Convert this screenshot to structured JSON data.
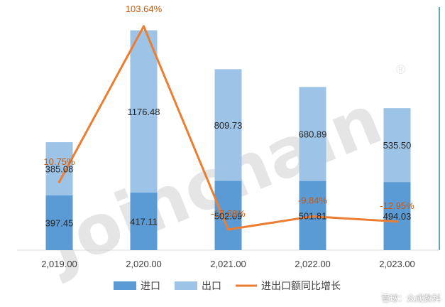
{
  "chart_data": {
    "type": "bar",
    "stacked": true,
    "categories": [
      "2,019.00",
      "2,020.00",
      "2,021.00",
      "2,022.00",
      "2,023.00"
    ],
    "series": [
      {
        "name": "进口",
        "kind": "bar",
        "values": [
          397.45,
          417.11,
          502.09,
          501.81,
          494.03
        ],
        "labels": [
          "397.45",
          "417.11",
          "502.09",
          "501.81",
          "494.03"
        ],
        "color": "#5b9bd5"
      },
      {
        "name": "出口",
        "kind": "bar",
        "values": [
          385.08,
          1176.48,
          809.73,
          680.89,
          535.5
        ],
        "labels": [
          "385.08",
          "1176.48",
          "809.73",
          "680.89",
          "535.50"
        ],
        "color": "#9dc3e6"
      },
      {
        "name": "进出口额同比增长",
        "kind": "line",
        "axis": "secondary",
        "values": [
          10.75,
          103.64,
          -17.68,
          -9.84,
          -12.95
        ],
        "labels": [
          "10.75%",
          "103.64%",
          "-17.68%",
          "-9.84%",
          "-12.95%"
        ],
        "color": "#ed7d31"
      }
    ],
    "ylim": [
      0,
      1700
    ],
    "y2lim": [
      -30,
      110
    ],
    "grid": false,
    "legend": "bottom"
  },
  "watermark": {
    "text": "Joinchain",
    "registered": "®"
  },
  "footer": {
    "text": "雪球：众成数科"
  }
}
